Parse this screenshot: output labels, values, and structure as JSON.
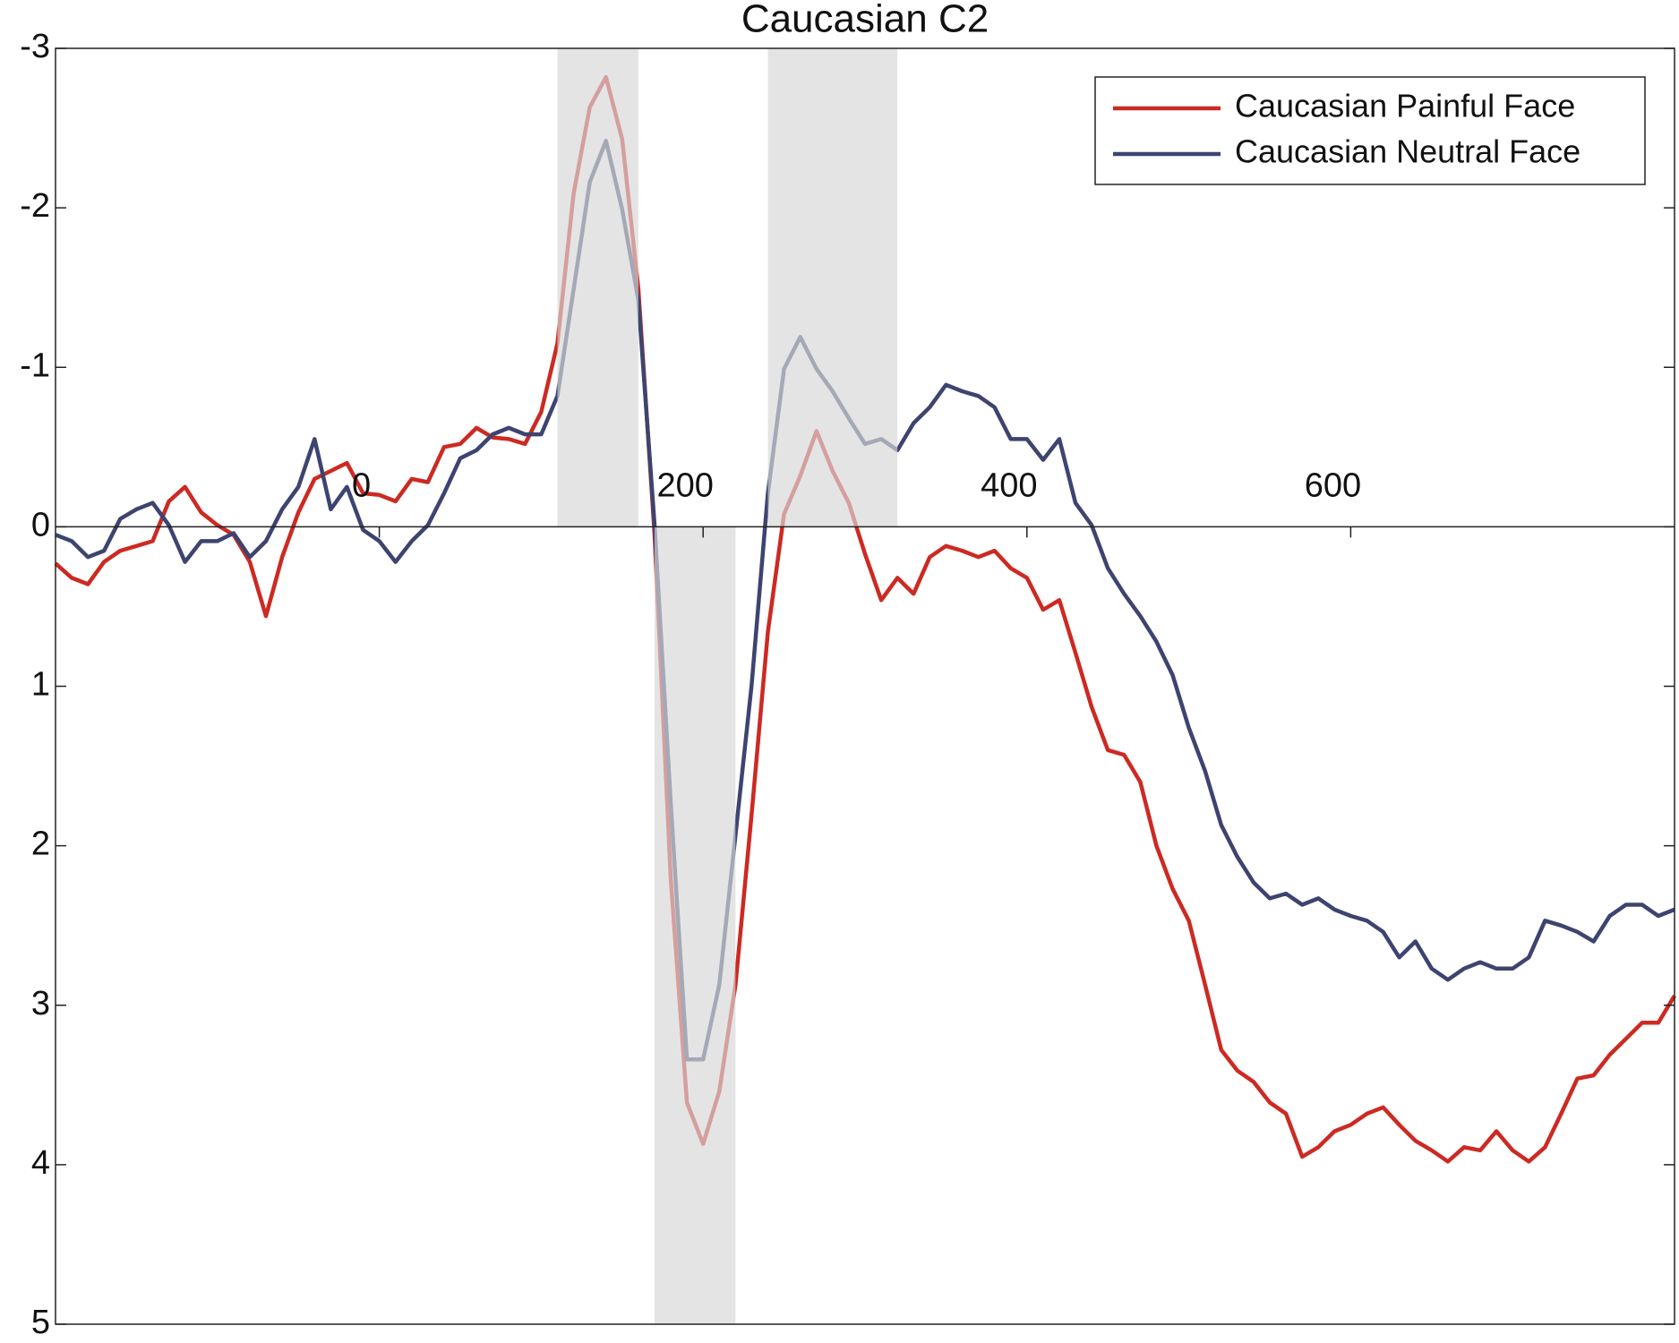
{
  "chart_data": {
    "type": "line",
    "title": "Caucasian C2",
    "x": [
      -200,
      -190,
      -180,
      -170,
      -160,
      -150,
      -140,
      -130,
      -120,
      -110,
      -100,
      -90,
      -80,
      -70,
      -60,
      -50,
      -40,
      -30,
      -20,
      -10,
      0,
      10,
      20,
      30,
      40,
      50,
      60,
      70,
      80,
      90,
      100,
      110,
      120,
      130,
      140,
      150,
      160,
      170,
      180,
      190,
      200,
      210,
      220,
      230,
      240,
      250,
      260,
      270,
      280,
      290,
      300,
      310,
      320,
      330,
      340,
      350,
      360,
      370,
      380,
      390,
      400,
      410,
      420,
      430,
      440,
      450,
      460,
      470,
      480,
      490,
      500,
      510,
      520,
      530,
      540,
      550,
      560,
      570,
      580,
      590,
      600,
      610,
      620,
      630,
      640,
      650,
      660,
      670,
      680,
      690,
      700,
      710,
      720,
      730,
      740,
      750,
      760,
      770,
      780,
      790,
      800
    ],
    "series": [
      {
        "name": "Caucasian Painful Face",
        "color": "#cc2a22",
        "values": [
          0.23,
          0.32,
          0.36,
          0.22,
          0.15,
          0.12,
          0.09,
          -0.16,
          -0.25,
          -0.09,
          -0.01,
          0.05,
          0.22,
          0.56,
          0.19,
          -0.09,
          -0.3,
          -0.35,
          -0.4,
          -0.21,
          -0.2,
          -0.16,
          -0.3,
          -0.28,
          -0.5,
          -0.52,
          -0.62,
          -0.56,
          -0.55,
          -0.52,
          -0.72,
          -1.15,
          -2.09,
          -2.63,
          -2.82,
          -2.43,
          -1.49,
          0.05,
          2.2,
          3.61,
          3.87,
          3.54,
          2.87,
          1.8,
          0.66,
          -0.08,
          -0.32,
          -0.6,
          -0.35,
          -0.15,
          0.17,
          0.46,
          0.32,
          0.42,
          0.19,
          0.12,
          0.15,
          0.19,
          0.15,
          0.26,
          0.32,
          0.52,
          0.46,
          0.79,
          1.13,
          1.4,
          1.43,
          1.6,
          2.0,
          2.27,
          2.47,
          2.87,
          3.28,
          3.41,
          3.48,
          3.61,
          3.68,
          3.95,
          3.89,
          3.79,
          3.75,
          3.68,
          3.64,
          3.75,
          3.85,
          3.91,
          3.98,
          3.89,
          3.91,
          3.79,
          3.91,
          3.98,
          3.89,
          3.68,
          3.46,
          3.44,
          3.31,
          3.21,
          3.11,
          3.11,
          2.94
        ]
      },
      {
        "name": "Caucasian Neutral Face",
        "color": "#3d4470",
        "values": [
          0.05,
          0.09,
          0.19,
          0.15,
          -0.05,
          -0.11,
          -0.15,
          -0.01,
          0.22,
          0.09,
          0.09,
          0.04,
          0.19,
          0.09,
          -0.11,
          -0.25,
          -0.55,
          -0.11,
          -0.25,
          0.02,
          0.09,
          0.22,
          0.09,
          -0.01,
          -0.21,
          -0.43,
          -0.48,
          -0.58,
          -0.62,
          -0.58,
          -0.58,
          -0.82,
          -1.49,
          -2.16,
          -2.42,
          -1.99,
          -1.42,
          -0.01,
          1.73,
          3.34,
          3.34,
          2.87,
          1.93,
          0.99,
          -0.21,
          -0.99,
          -1.19,
          -0.99,
          -0.85,
          -0.68,
          -0.52,
          -0.55,
          -0.48,
          -0.65,
          -0.75,
          -0.89,
          -0.85,
          -0.82,
          -0.75,
          -0.55,
          -0.55,
          -0.42,
          -0.55,
          -0.15,
          -0.01,
          0.26,
          0.42,
          0.56,
          0.72,
          0.93,
          1.26,
          1.53,
          1.87,
          2.07,
          2.23,
          2.33,
          2.3,
          2.37,
          2.33,
          2.4,
          2.44,
          2.47,
          2.54,
          2.7,
          2.6,
          2.77,
          2.84,
          2.77,
          2.73,
          2.77,
          2.77,
          2.7,
          2.47,
          2.5,
          2.54,
          2.6,
          2.44,
          2.37,
          2.37,
          2.44,
          2.4
        ]
      }
    ],
    "xlim": [
      -200,
      800
    ],
    "xticks": [
      0,
      200,
      400,
      600
    ],
    "ylim": [
      -3,
      5
    ],
    "y_direction": "reverse",
    "yticks": [
      -3,
      -2,
      -1,
      0,
      1,
      2,
      3,
      4,
      5
    ],
    "shaded_regions": [
      {
        "xlim": [
          110,
          160
        ],
        "ylim": [
          -3,
          0
        ]
      },
      {
        "xlim": [
          170,
          220
        ],
        "ylim": [
          0,
          5
        ]
      },
      {
        "xlim": [
          240,
          320
        ],
        "ylim": [
          -3,
          0
        ]
      }
    ],
    "legend": "top-right"
  }
}
